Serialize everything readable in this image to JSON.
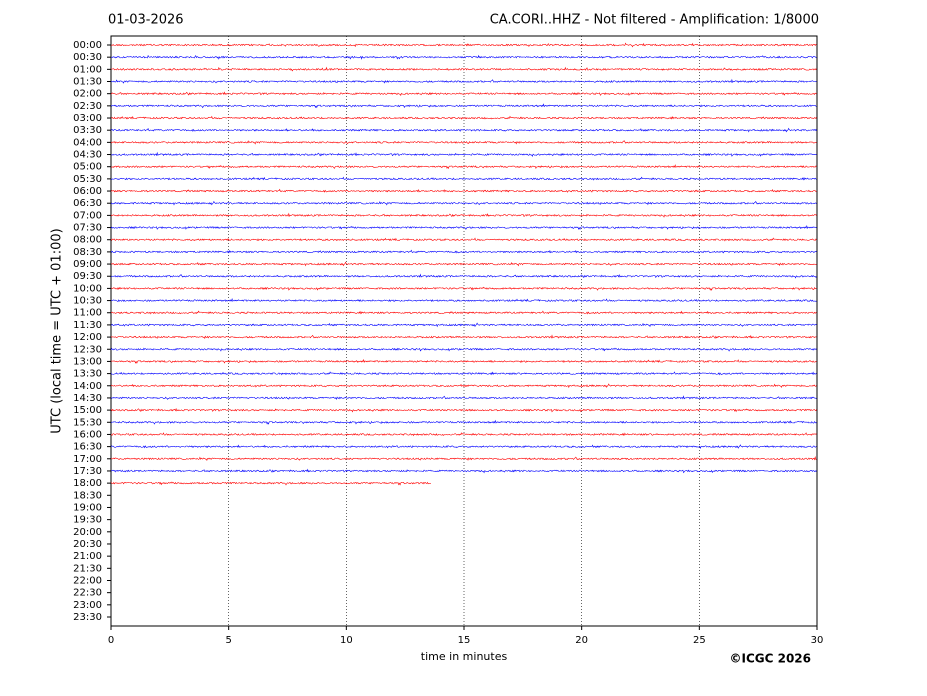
{
  "chart_data": {
    "type": "helicorder",
    "date": "01-03-2026",
    "title": "CA.CORI..HHZ - Not filtered - Amplification: 1/8000",
    "ylabel": "UTC (local time = UTC + 01:00)",
    "xlabel": "time in minutes",
    "copyright": "©ICGC 2026",
    "categories": [
      "00:00",
      "00:30",
      "01:00",
      "01:30",
      "02:00",
      "02:30",
      "03:00",
      "03:30",
      "04:00",
      "04:30",
      "05:00",
      "05:30",
      "06:00",
      "06:30",
      "07:00",
      "07:30",
      "08:00",
      "08:30",
      "09:00",
      "09:30",
      "10:00",
      "10:30",
      "11:00",
      "11:30",
      "12:00",
      "12:30",
      "13:00",
      "13:30",
      "14:00",
      "14:30",
      "15:00",
      "15:30",
      "16:00",
      "16:30",
      "17:00",
      "17:30",
      "18:00",
      "18:30",
      "19:00",
      "19:30",
      "20:00",
      "20:30",
      "21:00",
      "21:30",
      "22:00",
      "22:30",
      "23:00",
      "23:30"
    ],
    "trace_end": [
      30,
      30,
      30,
      30,
      30,
      30,
      30,
      30,
      30,
      30,
      30,
      30,
      30,
      30,
      30,
      30,
      30,
      30,
      30,
      30,
      30,
      30,
      30,
      30,
      30,
      30,
      30,
      30,
      30,
      30,
      30,
      30,
      30,
      30,
      30,
      30,
      13.6,
      null,
      null,
      null,
      null,
      null,
      null,
      null,
      null,
      null,
      null,
      null
    ],
    "trace_colors": [
      "#ff0000",
      "#0000ff"
    ],
    "xlim": [
      0,
      30
    ],
    "xticks": [
      0,
      5,
      10,
      15,
      20,
      25,
      30
    ],
    "grid": true
  }
}
